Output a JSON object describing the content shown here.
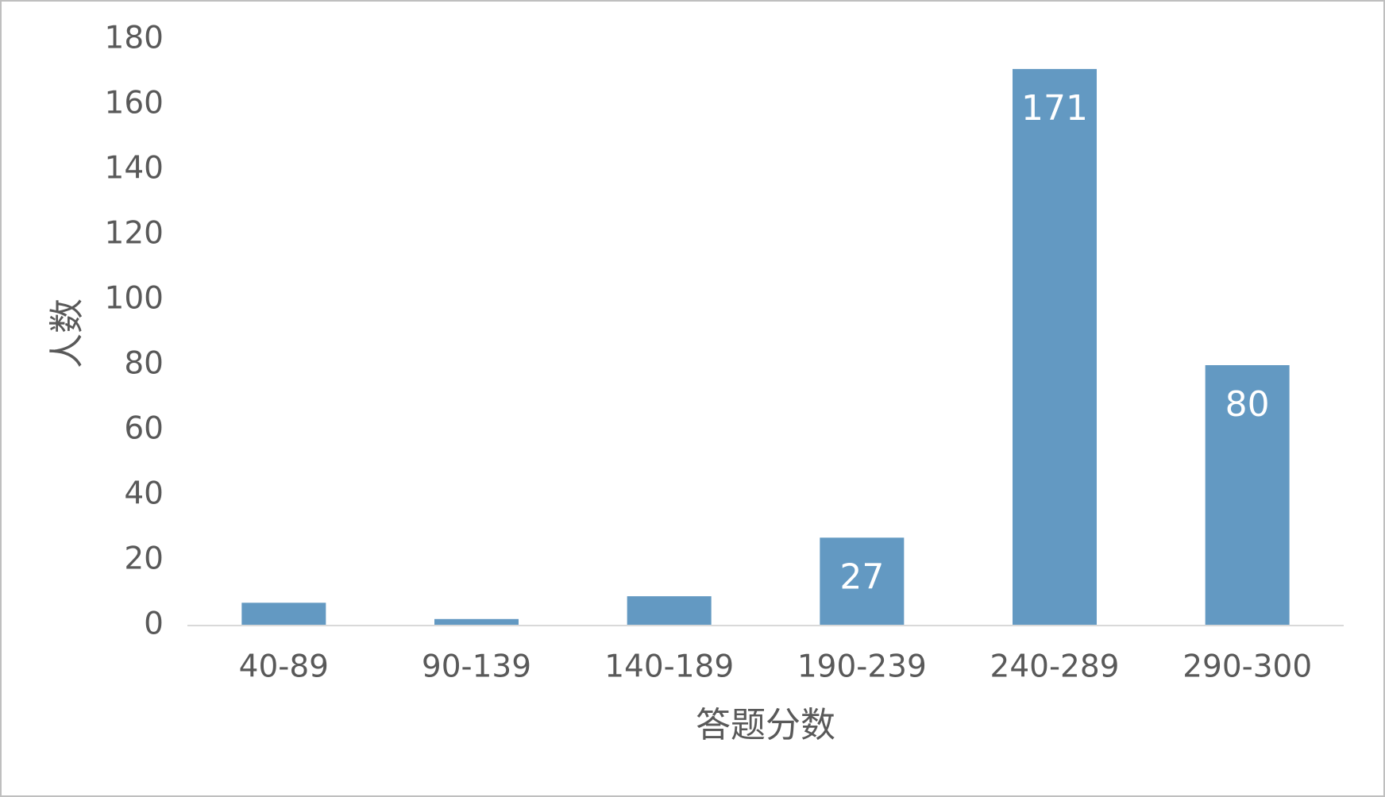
{
  "chart_data": {
    "type": "bar",
    "x_label": "答题分数",
    "y_label": "人数",
    "categories": [
      "40-89",
      "90-139",
      "140-189",
      "190-239",
      "240-289",
      "290-300"
    ],
    "values": [
      7,
      2,
      9,
      27,
      171,
      80
    ],
    "value_labels": [
      null,
      null,
      null,
      "27",
      "171",
      "80"
    ],
    "color": "#6399c2",
    "ylim": [
      0,
      180
    ],
    "yticks": [
      0,
      20,
      40,
      60,
      80,
      100,
      120,
      140,
      160,
      180
    ],
    "grid": false
  }
}
